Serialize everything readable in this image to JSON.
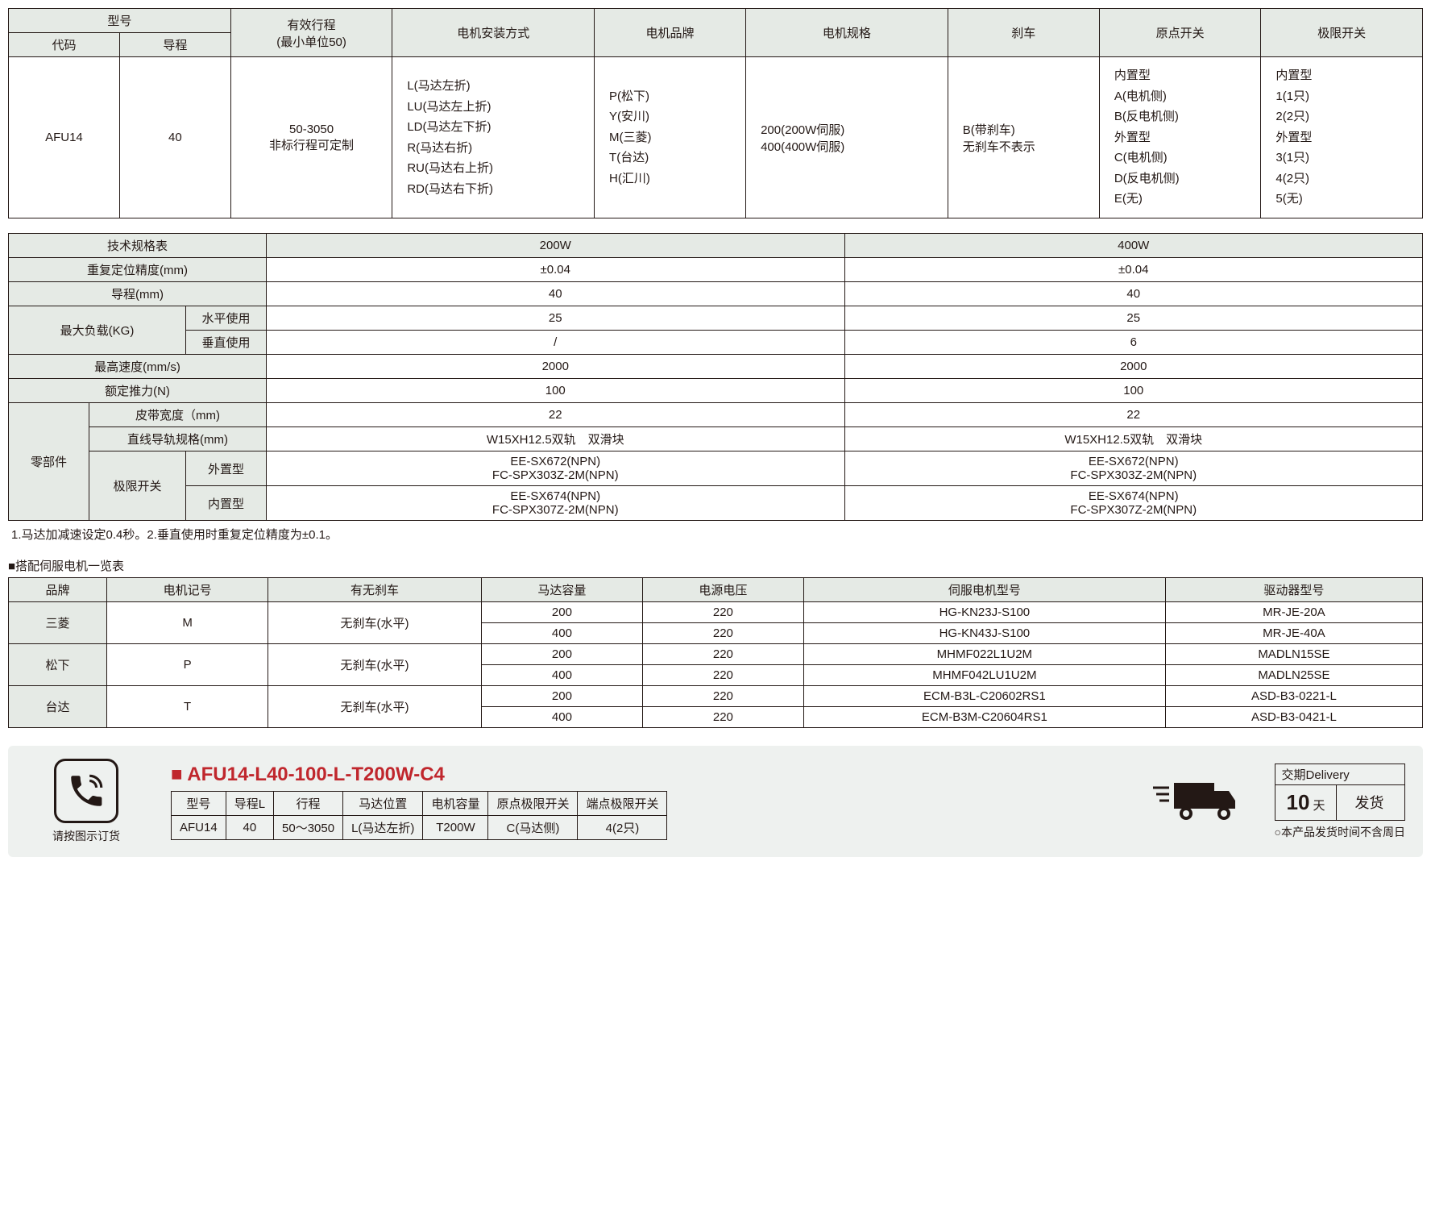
{
  "colors": {
    "header_bg": "#e5eae5",
    "border": "#231815",
    "accent": "#c0272d",
    "panel_bg": "#eef1ef"
  },
  "table1": {
    "headers": {
      "model": "型号",
      "code": "代码",
      "lead": "导程",
      "stroke": "有效行程\n(最小单位50)",
      "mount": "电机安装方式",
      "brand": "电机品牌",
      "spec": "电机规格",
      "brake": "刹车",
      "origin": "原点开关",
      "limit": "极限开关"
    },
    "row": {
      "code": "AFU14",
      "lead": "40",
      "stroke": "50-3050\n非标行程可定制",
      "mount": "L(马达左折)\nLU(马达左上折)\nLD(马达左下折)\nR(马达右折)\nRU(马达右上折)\nRD(马达右下折)",
      "brand": "P(松下)\nY(安川)\nM(三菱)\nT(台达)\nH(汇川)",
      "spec": "200(200W伺服)\n400(400W伺服)",
      "brake": "B(带刹车)\n无刹车不表示",
      "origin": "内置型\nA(电机侧)\nB(反电机侧)\n外置型\nC(电机侧)\nD(反电机侧)\nE(无)",
      "limit": "内置型\n1(1只)\n2(2只)\n外置型\n3(1只)\n4(2只)\n5(无)"
    }
  },
  "table2": {
    "title": "技术规格表",
    "cols": {
      "c1": "200W",
      "c2": "400W"
    },
    "rows": {
      "repeat": {
        "label": "重复定位精度(mm)",
        "v1": "±0.04",
        "v2": "±0.04"
      },
      "lead": {
        "label": "导程(mm)",
        "v1": "40",
        "v2": "40"
      },
      "load": {
        "label": "最大负载(KG)"
      },
      "load_h": {
        "label": "水平使用",
        "v1": "25",
        "v2": "25"
      },
      "load_v": {
        "label": "垂直使用",
        "v1": "/",
        "v2": "6"
      },
      "speed": {
        "label": "最高速度(mm/s)",
        "v1": "2000",
        "v2": "2000"
      },
      "thrust": {
        "label": "额定推力(N)",
        "v1": "100",
        "v2": "100"
      },
      "parts": {
        "label": "零部件"
      },
      "belt": {
        "label": "皮带宽度（mm)",
        "v1": "22",
        "v2": "22"
      },
      "rail": {
        "label": "直线导轨规格(mm)",
        "v1": "W15XH12.5双轨　双滑块",
        "v2": "W15XH12.5双轨　双滑块"
      },
      "limsw": {
        "label": "极限开关"
      },
      "ext": {
        "label": "外置型",
        "v1": "EE-SX672(NPN)\nFC-SPX303Z-2M(NPN)",
        "v2": "EE-SX672(NPN)\nFC-SPX303Z-2M(NPN)"
      },
      "int": {
        "label": "内置型",
        "v1": "EE-SX674(NPN)\nFC-SPX307Z-2M(NPN)",
        "v2": "EE-SX674(NPN)\nFC-SPX307Z-2M(NPN)"
      }
    },
    "note": "1.马达加减速设定0.4秒。2.垂直使用时重复定位精度为±0.1。"
  },
  "table3": {
    "title": "■搭配伺服电机一览表",
    "headers": {
      "brand": "品牌",
      "code": "电机记号",
      "brake": "有无刹车",
      "cap": "马达容量",
      "volt": "电源电压",
      "servo": "伺服电机型号",
      "driver": "驱动器型号"
    },
    "rows": [
      {
        "brand": "三菱",
        "code": "M",
        "brake": "无刹车(水平)",
        "sub": [
          {
            "cap": "200",
            "volt": "220",
            "servo": "HG-KN23J-S100",
            "driver": "MR-JE-20A"
          },
          {
            "cap": "400",
            "volt": "220",
            "servo": "HG-KN43J-S100",
            "driver": "MR-JE-40A"
          }
        ]
      },
      {
        "brand": "松下",
        "code": "P",
        "brake": "无刹车(水平)",
        "sub": [
          {
            "cap": "200",
            "volt": "220",
            "servo": "MHMF022L1U2M",
            "driver": "MADLN15SE"
          },
          {
            "cap": "400",
            "volt": "220",
            "servo": "MHMF042LU1U2M",
            "driver": "MADLN25SE"
          }
        ]
      },
      {
        "brand": "台达",
        "code": "T",
        "brake": "无刹车(水平)",
        "sub": [
          {
            "cap": "200",
            "volt": "220",
            "servo": "ECM-B3L-C20602RS1",
            "driver": "ASD-B3-0221-L"
          },
          {
            "cap": "400",
            "volt": "220",
            "servo": "ECM-B3M-C20604RS1",
            "driver": "ASD-B3-0421-L"
          }
        ]
      }
    ]
  },
  "order": {
    "phone_label": "请按图示订货",
    "part_number": "AFU14-L40-100-L-T200W-C4",
    "headers": {
      "model": "型号",
      "lead": "导程L",
      "stroke": "行程",
      "pos": "马达位置",
      "cap": "电机容量",
      "origin": "原点极限开关",
      "limit": "端点极限开关"
    },
    "values": {
      "model": "AFU14",
      "lead": "40",
      "stroke": "50～3050",
      "pos": "L(马达左折)",
      "cap": "T200W",
      "origin": "C(马达侧)",
      "limit": "4(2只)"
    },
    "delivery": {
      "title": "交期Delivery",
      "days": "10",
      "days_unit": "天",
      "ship": "发货",
      "note": "○本产品发货时间不含周日"
    }
  }
}
